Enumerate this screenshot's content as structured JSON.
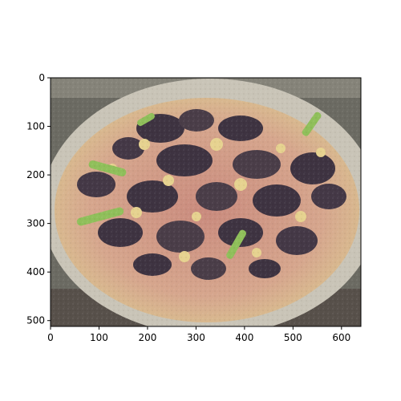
{
  "chart_data": {
    "type": "image",
    "title": "",
    "xlabel": "",
    "ylabel": "",
    "xlim": [
      0,
      640
    ],
    "ylim": [
      512,
      0
    ],
    "xticks": [
      0,
      100,
      200,
      300,
      400,
      500,
      600
    ],
    "yticks": [
      0,
      100,
      200,
      300,
      400,
      500
    ],
    "xtick_labels": [
      "0",
      "100",
      "200",
      "300",
      "400",
      "500",
      "600"
    ],
    "ytick_labels": [
      "0",
      "100",
      "200",
      "300",
      "400",
      "500"
    ],
    "grid": false
  },
  "colors": {
    "plate": "#c9c4b7",
    "crust": "#d9c08f",
    "sauce": "#c9786c",
    "mushroom": "#3e3341",
    "pepper": "#8fbf5a",
    "cheese": "#e6d28f",
    "background": "#6b6a62",
    "table": "#57504a"
  }
}
